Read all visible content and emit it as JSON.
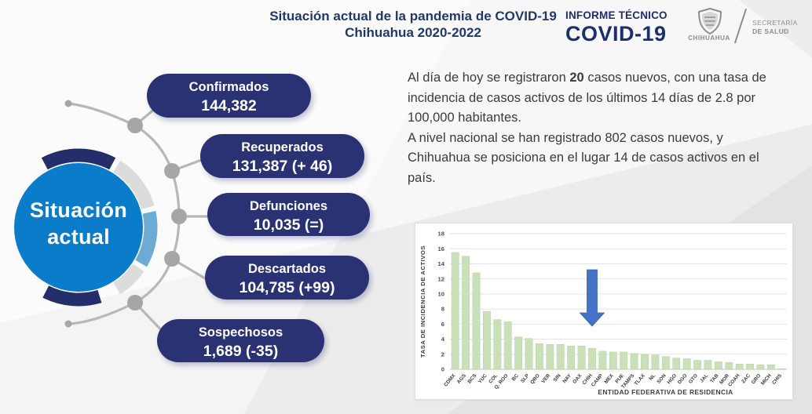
{
  "header": {
    "title_line1": "Situación actual de la pandemia de COVID-19",
    "title_line2": "Chihuahua 2020-2022",
    "brand_line1": "INFORME TÉCNICO",
    "brand_line2": "COVID-19",
    "logo_state": "CHIHUAHUA",
    "logo_secretariat_line1": "SECRETARÍA",
    "logo_secretariat_line2": "DE SALUD"
  },
  "badge": {
    "line1": "Situación",
    "line2": "actual"
  },
  "stats": [
    {
      "label": "Confirmados",
      "value": "144,382"
    },
    {
      "label": "Recuperados",
      "value": "131,387 (+ 46)"
    },
    {
      "label": "Defunciones",
      "value": "10,035 (=)"
    },
    {
      "label": "Descartados",
      "value": "104,785 (+99)"
    },
    {
      "label": "Sospechosos",
      "value": "1,689 (-35)"
    }
  ],
  "summary": {
    "p1_before": "Al día de hoy se registraron ",
    "p1_bold": "20",
    "p1_after": " casos nuevos, con una tasa de incidencia de casos activos de los últimos 14 días de 2.8 por 100,000 habitantes.",
    "p2": "A nivel nacional se han registrado 802 casos nuevos, y Chihuahua se posiciona en el lugar 14 de casos activos en el país."
  },
  "chart_data": {
    "type": "bar",
    "categories": [
      "CDMX",
      "AGS",
      "BCS",
      "YUC",
      "COL",
      "Q. ROO",
      "BC",
      "SLP",
      "QRO",
      "VER",
      "SIN",
      "NAY",
      "OAX",
      "CHIH",
      "CAMP",
      "MEX",
      "PUE",
      "TAMPS",
      "TLAX",
      "NL",
      "SON",
      "HGO",
      "DGO",
      "GTO",
      "JAL",
      "TAB",
      "MOR",
      "COAH",
      "ZAC",
      "GRO",
      "MICH",
      "CHIS"
    ],
    "values": [
      15.5,
      15.0,
      12.8,
      7.7,
      6.6,
      6.3,
      4.3,
      4.1,
      3.4,
      3.3,
      3.3,
      3.1,
      3.1,
      2.8,
      2.4,
      2.3,
      2.3,
      2.1,
      2.0,
      1.9,
      1.7,
      1.5,
      1.4,
      1.2,
      1.2,
      1.0,
      0.9,
      0.7,
      0.7,
      0.6,
      0.6,
      0.1
    ],
    "title": "",
    "xlabel": "ENTIDAD FEDERATIVA DE RESIDENCIA",
    "ylabel": "TASA DE INCIDENCIA DE ACTIVOS",
    "ylim": [
      0,
      18
    ],
    "ytick_step": 2,
    "grid": true,
    "legend": false,
    "bar_color": "#c9e0b9",
    "bar_border": "#b4d4a4",
    "highlight": {
      "category": "CHIH",
      "marker": "down-arrow",
      "color": "#4472c4",
      "border": "#3763ad"
    }
  },
  "colors": {
    "bg": "#ececec",
    "title_navy": "#21386b",
    "brand_navy": "#1c2f6d",
    "pill_navy": "#2a3274",
    "circle_blue": "#0a7cca",
    "arc_navy": "#232e6b",
    "arc_lightblue": "#6cacd4",
    "arc_gray": "#dcdcdc",
    "connector_gray": "#b9b6b6",
    "node_gray": "#a8a5a5",
    "text_dark": "#3b3b3b",
    "logo_gray": "#8d8d8d"
  }
}
